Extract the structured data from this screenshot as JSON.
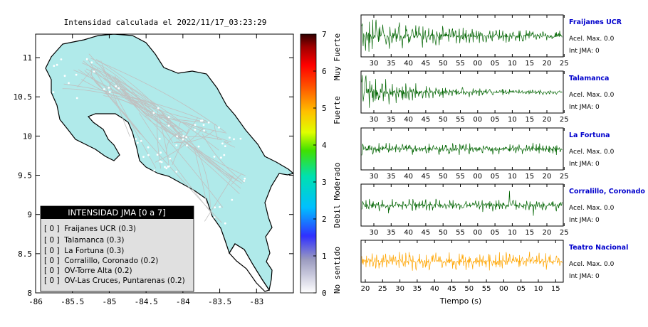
{
  "map": {
    "title": "Intensidad calculada el 2022/11/17_03:23:29",
    "x_ticks": [
      "-86",
      "-85.5",
      "-85",
      "-84.5",
      "-84",
      "-83.5",
      "-83"
    ],
    "y_ticks": [
      "11",
      "10.5",
      "10",
      "9.5",
      "9",
      "8.5",
      "8"
    ],
    "land_color": "#b0eaea",
    "legend": {
      "title": "INTENSIDAD JMA [0 a 7]",
      "items": [
        "[ 0 ]  Fraijanes UCR (0.3)",
        "[ 0 ]  Talamanca (0.3)",
        "[ 0 ]  La Fortuna (0.3)",
        "[ 0 ]  Corralillo, Coronado (0.2)",
        "[ 0 ]  OV-Torre Alta (0.2)",
        "[ 0 ]  OV-Las Cruces, Puntarenas (0.2)"
      ]
    }
  },
  "colorbar": {
    "ticks": [
      "7",
      "6",
      "5",
      "4",
      "3",
      "2",
      "1",
      "0"
    ],
    "labels": [
      "Muy Fuerte",
      "Fuerte",
      "Moderado",
      "Debil",
      "No sentido"
    ]
  },
  "chart_data": [
    {
      "type": "line",
      "title": "Intensidad calculada el 2022/11/17_03:23:29",
      "subtype": "map",
      "xlim": [
        -86,
        -82.5
      ],
      "ylim": [
        8,
        11.3
      ],
      "x_ticks": [
        -86,
        -85.5,
        -85,
        -84.5,
        -84,
        -83.5,
        -83
      ],
      "y_ticks": [
        11,
        10.5,
        10,
        9.5,
        9,
        8.5,
        8
      ]
    },
    {
      "type": "line",
      "subtype": "seismogram",
      "xlabel": "Tiempo (s)",
      "panels": [
        {
          "station": "Fraijanes UCR",
          "color": "#006400",
          "acel_max": "Acel. Max. 0.0",
          "int_jma": "Int JMA: 0",
          "x_ticks": [
            "30",
            "35",
            "40",
            "45",
            "50",
            "55",
            "00",
            "05",
            "10",
            "15",
            "20",
            "25"
          ]
        },
        {
          "station": "Talamanca",
          "color": "#006400",
          "acel_max": "Acel. Max. 0.0",
          "int_jma": "Int JMA: 0",
          "x_ticks": [
            "30",
            "35",
            "40",
            "45",
            "50",
            "55",
            "00",
            "05",
            "10",
            "15",
            "20",
            "25"
          ]
        },
        {
          "station": "La Fortuna",
          "color": "#006400",
          "acel_max": "Acel. Max. 0.0",
          "int_jma": "Int JMA: 0",
          "x_ticks": [
            "30",
            "35",
            "40",
            "45",
            "50",
            "55",
            "00",
            "05",
            "10",
            "15",
            "20",
            "25"
          ]
        },
        {
          "station": "Corralillo, Coronado",
          "color": "#006400",
          "acel_max": "Acel. Max. 0.0",
          "int_jma": "Int JMA: 0",
          "x_ticks": [
            "30",
            "35",
            "40",
            "45",
            "50",
            "55",
            "00",
            "05",
            "10",
            "15",
            "20",
            "25"
          ]
        },
        {
          "station": "Teatro Nacional",
          "color": "#ffa500",
          "acel_max": "Acel. Max. 0.0",
          "int_jma": "Int JMA: 0",
          "x_ticks": [
            "20",
            "25",
            "30",
            "35",
            "40",
            "45",
            "50",
            "55",
            "00",
            "05",
            "10",
            "15"
          ]
        }
      ]
    }
  ]
}
